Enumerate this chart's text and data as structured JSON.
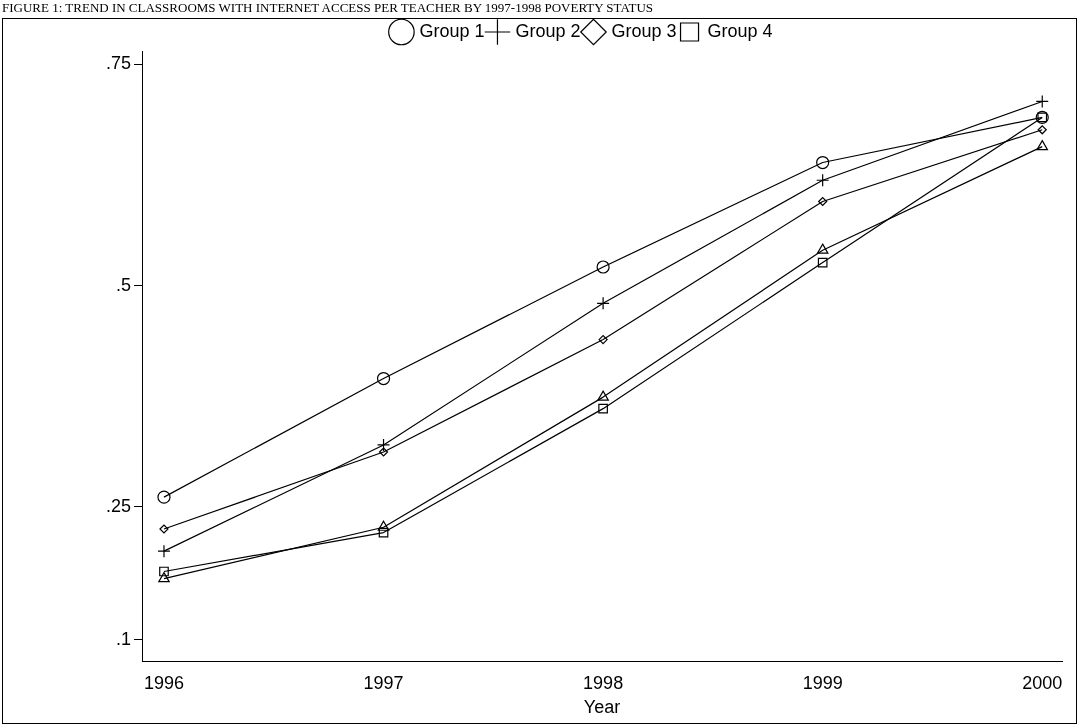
{
  "chart_data": {
    "type": "line",
    "title": "FIGURE 1: TREND IN CLASSROOMS WITH INTERNET ACCESS PER TEACHER BY 1997-1998 POVERTY STATUS",
    "xlabel": "Year",
    "x": [
      1996,
      1997,
      1998,
      1999,
      2000
    ],
    "series": [
      {
        "name": "Group 1",
        "color": "#000000",
        "marker": "circle",
        "values": [
          0.261,
          0.395,
          0.521,
          0.639,
          0.69
        ]
      },
      {
        "name": "Group 2",
        "color": "#000000",
        "marker": "cross",
        "values": [
          0.2,
          0.32,
          0.48,
          0.619,
          0.708
        ]
      },
      {
        "name": "Group 3",
        "color": "#000000",
        "marker": "diamond",
        "values": [
          0.225,
          0.312,
          0.439,
          0.595,
          0.676
        ]
      },
      {
        "name": "Group 4",
        "color": "#000000",
        "marker": "square",
        "values": [
          0.177,
          0.221,
          0.361,
          0.526,
          0.69
        ]
      },
      {
        "color": "#000000",
        "marker": "triangle",
        "values": [
          0.169,
          0.227,
          0.374,
          0.54,
          0.657
        ]
      }
    ],
    "xlim": [
      1995.9,
      2000.09
    ],
    "xticks": [
      1996,
      1997,
      1998,
      1999,
      2000
    ],
    "ylim": [
      0.075,
      0.765
    ],
    "yticks": [
      {
        "value": 0.1,
        "label": ".1"
      },
      {
        "value": 0.25,
        "label": ".25"
      },
      {
        "value": 0.5,
        "label": ".5"
      },
      {
        "value": 0.75,
        "label": ".75"
      }
    ],
    "grid": false,
    "legend": "top",
    "line_style": "solid"
  }
}
